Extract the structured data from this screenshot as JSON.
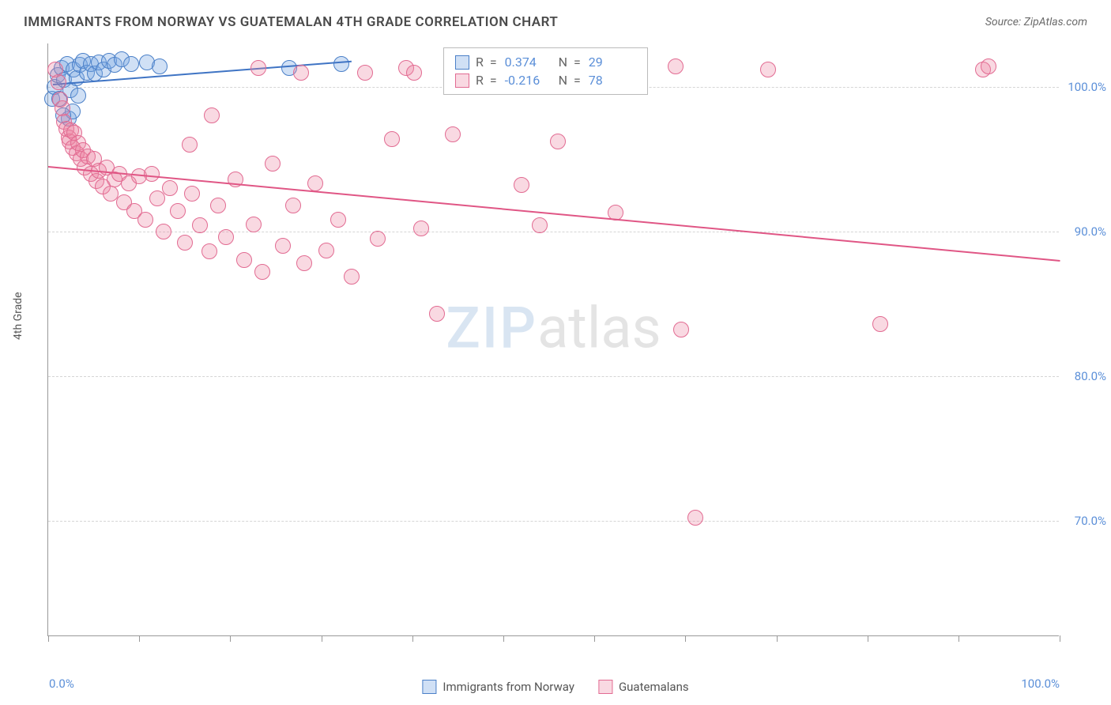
{
  "title": "IMMIGRANTS FROM NORWAY VS GUATEMALAN 4TH GRADE CORRELATION CHART",
  "source": "Source: ZipAtlas.com",
  "ylabel": "4th Grade",
  "watermark_a": "ZIP",
  "watermark_b": "atlas",
  "chart": {
    "type": "scatter",
    "xlim": [
      0,
      100
    ],
    "ylim": [
      62,
      103
    ],
    "yticks": [
      70,
      80,
      90,
      100
    ],
    "ytick_labels": [
      "70.0%",
      "80.0%",
      "90.0%",
      "100.0%"
    ],
    "xtick_positions": [
      0,
      9,
      18,
      27,
      36,
      45,
      54,
      63,
      72,
      81,
      90,
      100
    ],
    "xaxis_left_label": "0.0%",
    "xaxis_right_label": "100.0%",
    "grid_color": "#d5d5d5",
    "background_color": "#ffffff",
    "axis_color": "#999999",
    "label_color": "#5b8fd8",
    "marker_radius": 10,
    "series": [
      {
        "name": "Immigrants from Norway",
        "fill": "rgba(120,165,225,0.35)",
        "stroke": "#4b80c8",
        "line_color": "#3f74c4",
        "R": "0.374",
        "N": "29",
        "trend": {
          "x1": 0.5,
          "y1": 100.2,
          "x2": 30,
          "y2": 101.8
        },
        "points": [
          [
            0.4,
            99.2
          ],
          [
            0.6,
            100.0
          ],
          [
            0.9,
            100.8
          ],
          [
            1.1,
            99.2
          ],
          [
            1.3,
            101.3
          ],
          [
            1.6,
            100.5
          ],
          [
            1.9,
            101.6
          ],
          [
            2.2,
            99.8
          ],
          [
            2.5,
            101.2
          ],
          [
            2.8,
            100.6
          ],
          [
            3.1,
            101.5
          ],
          [
            3.4,
            101.8
          ],
          [
            3.8,
            101.0
          ],
          [
            4.2,
            101.6
          ],
          [
            4.6,
            100.9
          ],
          [
            5.0,
            101.7
          ],
          [
            5.5,
            101.2
          ],
          [
            6.0,
            101.8
          ],
          [
            6.6,
            101.5
          ],
          [
            7.3,
            101.9
          ],
          [
            8.2,
            101.6
          ],
          [
            2.0,
            97.8
          ],
          [
            2.4,
            98.3
          ],
          [
            1.5,
            98.0
          ],
          [
            3.0,
            99.4
          ],
          [
            9.8,
            101.7
          ],
          [
            11.0,
            101.4
          ],
          [
            23.8,
            101.3
          ],
          [
            29.0,
            101.6
          ]
        ]
      },
      {
        "name": "Guatemalans",
        "fill": "rgba(235,130,160,0.30)",
        "stroke": "#e26b92",
        "line_color": "#e05685",
        "R": "-0.216",
        "N": "78",
        "trend": {
          "x1": 0,
          "y1": 94.5,
          "x2": 100,
          "y2": 88.0
        },
        "points": [
          [
            0.7,
            101.2
          ],
          [
            1.0,
            100.3
          ],
          [
            1.2,
            99.1
          ],
          [
            1.4,
            98.5
          ],
          [
            1.6,
            97.6
          ],
          [
            1.8,
            97.1
          ],
          [
            2.0,
            96.5
          ],
          [
            2.1,
            96.2
          ],
          [
            2.3,
            97.0
          ],
          [
            2.4,
            95.8
          ],
          [
            2.6,
            96.8
          ],
          [
            2.8,
            95.4
          ],
          [
            3.0,
            96.1
          ],
          [
            3.2,
            95.0
          ],
          [
            3.4,
            95.6
          ],
          [
            3.6,
            94.4
          ],
          [
            3.9,
            95.2
          ],
          [
            4.2,
            94.0
          ],
          [
            4.5,
            95.0
          ],
          [
            4.8,
            93.5
          ],
          [
            5.0,
            94.2
          ],
          [
            5.4,
            93.1
          ],
          [
            5.8,
            94.4
          ],
          [
            6.2,
            92.6
          ],
          [
            6.6,
            93.6
          ],
          [
            7.0,
            94.0
          ],
          [
            7.5,
            92.0
          ],
          [
            8.0,
            93.3
          ],
          [
            8.5,
            91.4
          ],
          [
            9.0,
            93.8
          ],
          [
            9.6,
            90.8
          ],
          [
            10.2,
            94.0
          ],
          [
            10.8,
            92.3
          ],
          [
            11.4,
            90.0
          ],
          [
            12.0,
            93.0
          ],
          [
            12.8,
            91.4
          ],
          [
            13.5,
            89.2
          ],
          [
            14.2,
            92.6
          ],
          [
            15.0,
            90.4
          ],
          [
            15.9,
            88.6
          ],
          [
            16.8,
            91.8
          ],
          [
            17.6,
            89.6
          ],
          [
            18.5,
            93.6
          ],
          [
            19.4,
            88.0
          ],
          [
            20.3,
            90.5
          ],
          [
            21.2,
            87.2
          ],
          [
            22.2,
            94.7
          ],
          [
            23.2,
            89.0
          ],
          [
            24.2,
            91.8
          ],
          [
            25.3,
            87.8
          ],
          [
            26.4,
            93.3
          ],
          [
            27.5,
            88.7
          ],
          [
            28.7,
            90.8
          ],
          [
            30.0,
            86.9
          ],
          [
            31.3,
            101.0
          ],
          [
            32.6,
            89.5
          ],
          [
            34.0,
            96.4
          ],
          [
            35.4,
            101.3
          ],
          [
            36.9,
            90.2
          ],
          [
            38.4,
            84.3
          ],
          [
            36.2,
            101.0
          ],
          [
            20.8,
            101.3
          ],
          [
            25.0,
            101.0
          ],
          [
            16.2,
            98.0
          ],
          [
            40.0,
            96.7
          ],
          [
            41.5,
            101.4
          ],
          [
            14.0,
            96.0
          ],
          [
            46.8,
            93.2
          ],
          [
            48.6,
            90.4
          ],
          [
            50.4,
            96.2
          ],
          [
            56.1,
            91.3
          ],
          [
            62.0,
            101.4
          ],
          [
            64.0,
            70.2
          ],
          [
            71.2,
            101.2
          ],
          [
            62.6,
            83.2
          ],
          [
            82.3,
            83.6
          ],
          [
            92.4,
            101.2
          ],
          [
            93.0,
            101.4
          ]
        ]
      }
    ]
  },
  "legend": {
    "series1_label": "Immigrants from Norway",
    "series2_label": "Guatemalans"
  },
  "stats_box": {
    "r_label": "R  =",
    "n_label": "N  ="
  }
}
